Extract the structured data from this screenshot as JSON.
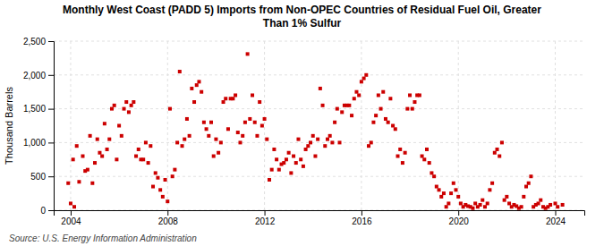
{
  "chart_data": {
    "type": "scatter",
    "title": "Monthly West Coast (PADD 5) Imports from Non-OPEC Countries of Residual Fuel Oil, Greater\nThan 1% Sulfur",
    "ylabel": "Thousand Barrels",
    "source": "Source: U.S. Energy Information Administration",
    "color": "#cc0000",
    "marker": "square",
    "grid": true,
    "xlim": [
      2003.3,
      2025.2
    ],
    "ylim": [
      0,
      2500
    ],
    "xticks": [
      2004,
      2008,
      2012,
      2016,
      2020,
      2024
    ],
    "yticks": [
      0,
      500,
      {
        "value": 1000,
        "label": "1,000"
      },
      {
        "value": 1500,
        "label": "1,500"
      },
      {
        "value": 2000,
        "label": "2,000"
      },
      {
        "value": 2500,
        "label": "2,500"
      }
    ],
    "x": [
      2003.9,
      2004.0,
      2004.1,
      2004.15,
      2004.25,
      2004.35,
      2004.5,
      2004.6,
      2004.7,
      2004.8,
      2004.9,
      2005.0,
      2005.1,
      2005.2,
      2005.3,
      2005.4,
      2005.5,
      2005.6,
      2005.7,
      2005.8,
      2005.9,
      2006.0,
      2006.1,
      2006.2,
      2006.3,
      2006.4,
      2006.5,
      2006.6,
      2006.7,
      2006.8,
      2006.9,
      2007.0,
      2007.1,
      2007.2,
      2007.3,
      2007.4,
      2007.5,
      2007.6,
      2007.7,
      2007.8,
      2007.9,
      2008.0,
      2008.1,
      2008.2,
      2008.3,
      2008.4,
      2008.5,
      2008.6,
      2008.7,
      2008.8,
      2008.9,
      2009.0,
      2009.1,
      2009.2,
      2009.3,
      2009.4,
      2009.5,
      2009.6,
      2009.7,
      2009.8,
      2009.9,
      2010.0,
      2010.1,
      2010.2,
      2010.3,
      2010.4,
      2010.5,
      2010.6,
      2010.7,
      2010.8,
      2010.9,
      2011.0,
      2011.1,
      2011.2,
      2011.3,
      2011.4,
      2011.5,
      2011.6,
      2011.7,
      2011.8,
      2011.9,
      2012.0,
      2012.1,
      2012.2,
      2012.3,
      2012.4,
      2012.5,
      2012.6,
      2012.7,
      2012.8,
      2012.9,
      2013.0,
      2013.1,
      2013.2,
      2013.3,
      2013.4,
      2013.5,
      2013.6,
      2013.7,
      2013.8,
      2013.9,
      2014.0,
      2014.1,
      2014.2,
      2014.3,
      2014.4,
      2014.5,
      2014.6,
      2014.7,
      2014.8,
      2014.9,
      2015.0,
      2015.1,
      2015.2,
      2015.3,
      2015.4,
      2015.5,
      2015.6,
      2015.7,
      2015.8,
      2015.9,
      2016.0,
      2016.1,
      2016.2,
      2016.3,
      2016.4,
      2016.5,
      2016.6,
      2016.7,
      2016.8,
      2016.9,
      2017.0,
      2017.1,
      2017.2,
      2017.3,
      2017.4,
      2017.5,
      2017.6,
      2017.7,
      2017.8,
      2017.9,
      2018.0,
      2018.1,
      2018.2,
      2018.3,
      2018.4,
      2018.5,
      2018.6,
      2018.7,
      2018.8,
      2018.9,
      2019.0,
      2019.1,
      2019.2,
      2019.3,
      2019.4,
      2019.5,
      2019.6,
      2019.7,
      2019.8,
      2019.9,
      2020.0,
      2020.1,
      2020.2,
      2020.3,
      2020.4,
      2020.5,
      2020.6,
      2020.7,
      2020.8,
      2020.9,
      2021.0,
      2021.1,
      2021.2,
      2021.3,
      2021.4,
      2021.5,
      2021.6,
      2021.7,
      2021.8,
      2021.9,
      2022.0,
      2022.1,
      2022.2,
      2022.3,
      2022.4,
      2022.5,
      2022.6,
      2022.7,
      2022.8,
      2022.9,
      2023.0,
      2023.1,
      2023.2,
      2023.3,
      2023.4,
      2023.5,
      2023.6,
      2023.7,
      2023.8,
      2024.0,
      2024.1,
      2024.3
    ],
    "values": [
      400,
      100,
      750,
      50,
      950,
      420,
      800,
      580,
      600,
      1100,
      400,
      700,
      1050,
      850,
      800,
      1280,
      900,
      1050,
      1500,
      1550,
      750,
      1250,
      1100,
      1500,
      1600,
      1450,
      1550,
      1600,
      800,
      900,
      750,
      750,
      1000,
      700,
      950,
      350,
      550,
      480,
      300,
      200,
      450,
      130,
      1500,
      500,
      600,
      1000,
      2050,
      950,
      1050,
      1350,
      1100,
      1800,
      1600,
      1850,
      1900,
      1750,
      1300,
      1200,
      1100,
      1300,
      800,
      1050,
      850,
      1000,
      1600,
      1650,
      1200,
      1650,
      1650,
      1700,
      1150,
      1000,
      1100,
      1300,
      2310,
      1350,
      1700,
      1300,
      1100,
      1600,
      1250,
      1350,
      1050,
      450,
      600,
      900,
      750,
      600,
      680,
      700,
      750,
      850,
      550,
      800,
      700,
      1050,
      750,
      650,
      900,
      950,
      1000,
      1100,
      800,
      1050,
      1800,
      1550,
      950,
      1050,
      1100,
      1000,
      1300,
      1500,
      1000,
      1450,
      1550,
      1550,
      1550,
      1400,
      1650,
      1750,
      1700,
      1900,
      1950,
      2000,
      950,
      1000,
      1300,
      1400,
      1700,
      1500,
      1750,
      1350,
      1300,
      1650,
      1250,
      1200,
      800,
      900,
      700,
      850,
      1500,
      1700,
      1500,
      1600,
      1700,
      1700,
      800,
      750,
      900,
      700,
      550,
      500,
      350,
      300,
      200,
      250,
      50,
      100,
      250,
      400,
      300,
      200,
      100,
      50,
      80,
      60,
      50,
      30,
      100,
      50,
      80,
      150,
      50,
      100,
      300,
      400,
      850,
      900,
      800,
      1000,
      150,
      200,
      100,
      50,
      80,
      60,
      30,
      50,
      200,
      350,
      400,
      500,
      50,
      80,
      100,
      150,
      50,
      30,
      50,
      80,
      100,
      50,
      80
    ]
  }
}
